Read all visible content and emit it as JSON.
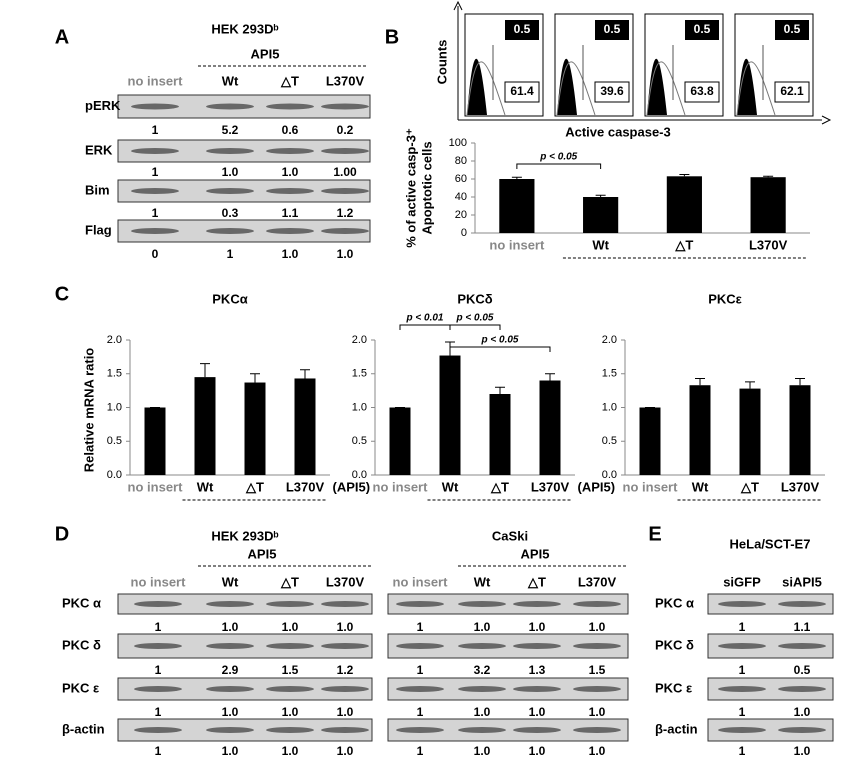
{
  "panel_labels": [
    "A",
    "B",
    "C",
    "D",
    "E"
  ],
  "blots": [
    {
      "title": "HEK 293Dᵇ",
      "group": "API5",
      "lanes": [
        "no insert",
        "Wt",
        "△T",
        "L370V"
      ],
      "rows": [
        {
          "label": "pERK",
          "quant": [
            "1",
            "5.2",
            "0.6",
            "0.2"
          ]
        },
        {
          "label": "ERK",
          "quant": [
            "1",
            "1.0",
            "1.0",
            "1.00"
          ]
        },
        {
          "label": "Bim",
          "quant": [
            "1",
            "0.3",
            "1.1",
            "1.2"
          ]
        },
        {
          "label": "Flag",
          "quant": [
            "0",
            "1",
            "1.0",
            "1.0"
          ]
        }
      ]
    },
    {
      "title": "HEK 293Dᵇ",
      "group": "API5",
      "lanes": [
        "no insert",
        "Wt",
        "△T",
        "L370V"
      ],
      "rows": [
        {
          "label": "PKC α",
          "quant": [
            "1",
            "1.0",
            "1.0",
            "1.0"
          ]
        },
        {
          "label": "PKC δ",
          "quant": [
            "1",
            "2.9",
            "1.5",
            "1.2"
          ]
        },
        {
          "label": "PKC ε",
          "quant": [
            "1",
            "1.0",
            "1.0",
            "1.0"
          ]
        },
        {
          "label": "β-actin",
          "quant": [
            "1",
            "1.0",
            "1.0",
            "1.0"
          ]
        }
      ]
    },
    {
      "title": "CaSki",
      "group": "API5",
      "lanes": [
        "no insert",
        "Wt",
        "△T",
        "L370V"
      ],
      "rows": [
        {
          "quant": [
            "1",
            "1.0",
            "1.0",
            "1.0"
          ]
        },
        {
          "quant": [
            "1",
            "3.2",
            "1.3",
            "1.5"
          ]
        },
        {
          "quant": [
            "1",
            "1.0",
            "1.0",
            "1.0"
          ]
        },
        {
          "quant": [
            "1",
            "1.0",
            "1.0",
            "1.0"
          ]
        }
      ]
    },
    {
      "title": "HeLa/SCT-E7",
      "lanes": [
        "siGFP",
        "siAPI5"
      ],
      "rows": [
        {
          "label": "PKC α",
          "quant": [
            "1",
            "1.1"
          ]
        },
        {
          "label": "PKC δ",
          "quant": [
            "1",
            "0.5"
          ]
        },
        {
          "label": "PKC ε",
          "quant": [
            "1",
            "1.0"
          ]
        },
        {
          "label": "β-actin",
          "quant": [
            "1",
            "1.0"
          ]
        }
      ]
    }
  ],
  "flow": {
    "y_label": "Counts",
    "x_label": "Active caspase-3",
    "panels": [
      {
        "top": "0.5",
        "bottom": "61.4"
      },
      {
        "top": "0.5",
        "bottom": "39.6"
      },
      {
        "top": "0.5",
        "bottom": "63.8"
      },
      {
        "top": "0.5",
        "bottom": "62.1"
      }
    ]
  },
  "chart_data": [
    {
      "type": "bar",
      "y_label": [
        "% of active casp-3⁺",
        "Apoptotic cells"
      ],
      "categories": [
        "no insert",
        "Wt",
        "△T",
        "L370V"
      ],
      "values": [
        60,
        40,
        63,
        62
      ],
      "errors": [
        2,
        2,
        2,
        1
      ],
      "color": "#000000",
      "ylim": [
        0,
        100
      ],
      "yticks": [
        0,
        20,
        40,
        60,
        80,
        100
      ],
      "annotations": [
        "p < 0.05"
      ]
    },
    {
      "type": "bar",
      "title": "PKCα",
      "y_label": "Relative mRNA ratio",
      "categories": [
        "no insert",
        "Wt",
        "△T",
        "L370V"
      ],
      "note": "(API5)",
      "values": [
        1.0,
        1.45,
        1.37,
        1.43
      ],
      "errors": [
        0,
        0.2,
        0.13,
        0.13
      ],
      "color": "#000000",
      "ylim": [
        0,
        2
      ],
      "yticks": [
        {
          "value": 0,
          "label": "0.0"
        },
        {
          "value": 0.5,
          "label": "0.5"
        },
        {
          "value": 1,
          "label": "1.0"
        },
        {
          "value": 1.5,
          "label": "1.5"
        },
        {
          "value": 2,
          "label": "2.0"
        }
      ]
    },
    {
      "type": "bar",
      "title": "PKCδ",
      "categories": [
        "no insert",
        "Wt",
        "△T",
        "L370V"
      ],
      "note": "(API5)",
      "values": [
        1.0,
        1.77,
        1.2,
        1.4
      ],
      "errors": [
        0,
        0.2,
        0.1,
        0.1
      ],
      "color": "#000000",
      "ylim": [
        0,
        2
      ],
      "yticks": [
        {
          "value": 0,
          "label": "0.0"
        },
        {
          "value": 0.5,
          "label": "0.5"
        },
        {
          "value": 1,
          "label": "1.0"
        },
        {
          "value": 1.5,
          "label": "1.5"
        },
        {
          "value": 2,
          "label": "2.0"
        }
      ],
      "annotations": [
        "p < 0.01",
        "p < 0.05",
        "p < 0.05"
      ]
    },
    {
      "type": "bar",
      "title": "PKCε",
      "categories": [
        "no insert",
        "Wt",
        "△T",
        "L370V"
      ],
      "values": [
        1.0,
        1.33,
        1.28,
        1.33
      ],
      "errors": [
        0,
        0.1,
        0.1,
        0.1
      ],
      "color": "#000000",
      "ylim": [
        0,
        2
      ],
      "yticks": [
        {
          "value": 0,
          "label": "0.0"
        },
        {
          "value": 0.5,
          "label": "0.5"
        },
        {
          "value": 1,
          "label": "1.0"
        },
        {
          "value": 1.5,
          "label": "1.5"
        },
        {
          "value": 2,
          "label": "2.0"
        }
      ]
    }
  ]
}
